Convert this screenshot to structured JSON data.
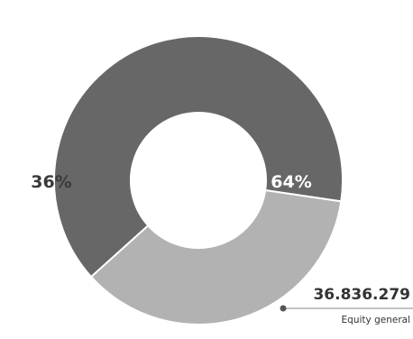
{
  "chart_data": {
    "type": "pie",
    "style": "donut",
    "slices": [
      {
        "label": "64%",
        "value": 64,
        "color": "#676767",
        "label_color": "#ffffff"
      },
      {
        "label": "36%",
        "value": 36,
        "color": "#b2b2b2",
        "label_color": "#3a3a3a"
      }
    ],
    "annotation": {
      "value": "36.836.279",
      "caption": "Equity general"
    }
  }
}
